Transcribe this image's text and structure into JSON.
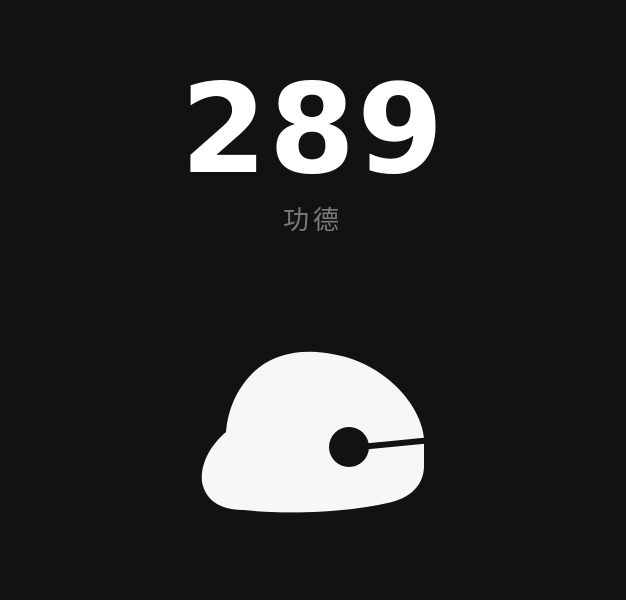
{
  "merit": {
    "count": "289",
    "label": "功德"
  },
  "colors": {
    "background": "#121212",
    "counter": "#ffffff",
    "label": "#7a7a7a",
    "fish_body": "#f7f7f7"
  },
  "icons": {
    "fish": "wooden-fish-icon"
  }
}
